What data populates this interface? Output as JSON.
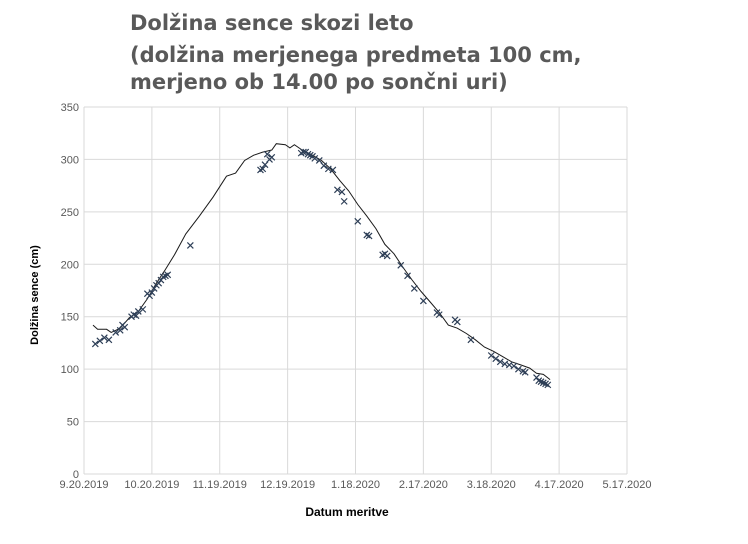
{
  "chart_data": {
    "type": "scatter",
    "title_lines": [
      "Dolžina sence skozi leto",
      "(dolžina merjenega predmeta 100 cm,",
      "merjeno ob 14.00 po sončni uri)"
    ],
    "xlabel": "Datum meritve",
    "ylabel": "Dolžina sence (cm)",
    "x_ticks": [
      "9.20.2019",
      "10.20.2019",
      "11.19.2019",
      "12.19.2019",
      "1.18.2020",
      "2.17.2020",
      "3.18.2020",
      "4.17.2020",
      "5.17.2020"
    ],
    "y_ticks": [
      0,
      50,
      100,
      150,
      200,
      250,
      300,
      350
    ],
    "xlim": [
      "2019-09-20",
      "2020-05-17"
    ],
    "ylim": [
      0,
      350
    ],
    "grid": true,
    "marker": "x",
    "colors": {
      "points": "#2e3f57",
      "line": "#1a1a1a",
      "grid": "#d9d9d9",
      "axis_text": "#595959",
      "title": "#595959"
    },
    "series": [
      {
        "kind": "measured-points",
        "points": [
          [
            "2019-09-25",
            124
          ],
          [
            "2019-09-27",
            127
          ],
          [
            "2019-09-29",
            130
          ],
          [
            "2019-10-01",
            128
          ],
          [
            "2019-10-04",
            135
          ],
          [
            "2019-10-06",
            137
          ],
          [
            "2019-10-07",
            142
          ],
          [
            "2019-10-08",
            140
          ],
          [
            "2019-10-11",
            150
          ],
          [
            "2019-10-12",
            152
          ],
          [
            "2019-10-13",
            151
          ],
          [
            "2019-10-14",
            155
          ],
          [
            "2019-10-16",
            157
          ],
          [
            "2019-10-18",
            172
          ],
          [
            "2019-10-19",
            170
          ],
          [
            "2019-10-20",
            173
          ],
          [
            "2019-10-21",
            177
          ],
          [
            "2019-10-22",
            180
          ],
          [
            "2019-10-23",
            182
          ],
          [
            "2019-10-24",
            185
          ],
          [
            "2019-10-25",
            188
          ],
          [
            "2019-10-26",
            189
          ],
          [
            "2019-10-27",
            190
          ],
          [
            "2019-11-06",
            218
          ],
          [
            "2019-12-07",
            290
          ],
          [
            "2019-12-08",
            291
          ],
          [
            "2019-12-09",
            295
          ],
          [
            "2019-12-10",
            305
          ],
          [
            "2019-12-11",
            300
          ],
          [
            "2019-12-12",
            302
          ],
          [
            "2019-12-25",
            306
          ],
          [
            "2019-12-26",
            307
          ],
          [
            "2019-12-27",
            307
          ],
          [
            "2019-12-28",
            305
          ],
          [
            "2019-12-29",
            304
          ],
          [
            "2019-12-30",
            303
          ],
          [
            "2019-12-31",
            301
          ],
          [
            "2020-01-02",
            299
          ],
          [
            "2020-01-04",
            294
          ],
          [
            "2020-01-06",
            291
          ],
          [
            "2020-01-08",
            290
          ],
          [
            "2020-01-10",
            271
          ],
          [
            "2020-01-12",
            269
          ],
          [
            "2020-01-13",
            260
          ],
          [
            "2020-01-19",
            241
          ],
          [
            "2020-01-23",
            228
          ],
          [
            "2020-01-24",
            227
          ],
          [
            "2020-01-30",
            209
          ],
          [
            "2020-01-31",
            210
          ],
          [
            "2020-02-01",
            208
          ],
          [
            "2020-02-07",
            199
          ],
          [
            "2020-02-10",
            189
          ],
          [
            "2020-02-13",
            177
          ],
          [
            "2020-02-17",
            165
          ],
          [
            "2020-02-23",
            154
          ],
          [
            "2020-02-24",
            152
          ],
          [
            "2020-03-02",
            147
          ],
          [
            "2020-03-03",
            145
          ],
          [
            "2020-03-09",
            128
          ],
          [
            "2020-03-18",
            113
          ],
          [
            "2020-03-20",
            110
          ],
          [
            "2020-03-22",
            107
          ],
          [
            "2020-03-24",
            105
          ],
          [
            "2020-03-26",
            104
          ],
          [
            "2020-03-28",
            103
          ],
          [
            "2020-03-30",
            100
          ],
          [
            "2020-04-01",
            98
          ],
          [
            "2020-04-02",
            97
          ],
          [
            "2020-04-07",
            92
          ],
          [
            "2020-04-08",
            89
          ],
          [
            "2020-04-09",
            88
          ],
          [
            "2020-04-10",
            87
          ],
          [
            "2020-04-11",
            86
          ],
          [
            "2020-04-12",
            85
          ]
        ]
      },
      {
        "kind": "reference-line",
        "points": [
          [
            "2019-09-24",
            142
          ],
          [
            "2019-09-26",
            138
          ],
          [
            "2019-09-30",
            138
          ],
          [
            "2019-10-02",
            135
          ],
          [
            "2019-10-06",
            139
          ],
          [
            "2019-10-10",
            149
          ],
          [
            "2019-10-14",
            155
          ],
          [
            "2019-10-18",
            167
          ],
          [
            "2019-10-22",
            182
          ],
          [
            "2019-10-26",
            195
          ],
          [
            "2019-10-30",
            209
          ],
          [
            "2019-11-04",
            229
          ],
          [
            "2019-11-10",
            246
          ],
          [
            "2019-11-16",
            264
          ],
          [
            "2019-11-22",
            284
          ],
          [
            "2019-11-26",
            287
          ],
          [
            "2019-11-30",
            299
          ],
          [
            "2019-12-04",
            304
          ],
          [
            "2019-12-08",
            307
          ],
          [
            "2019-12-12",
            309
          ],
          [
            "2019-12-14",
            315
          ],
          [
            "2019-12-18",
            314
          ],
          [
            "2019-12-20",
            311
          ],
          [
            "2019-12-22",
            314
          ],
          [
            "2019-12-26",
            308
          ],
          [
            "2019-12-30",
            304
          ],
          [
            "2020-01-03",
            299
          ],
          [
            "2020-01-07",
            291
          ],
          [
            "2020-01-11",
            280
          ],
          [
            "2020-01-15",
            270
          ],
          [
            "2020-01-19",
            257
          ],
          [
            "2020-01-23",
            246
          ],
          [
            "2020-01-27",
            234
          ],
          [
            "2020-01-31",
            219
          ],
          [
            "2020-02-04",
            210
          ],
          [
            "2020-02-08",
            197
          ],
          [
            "2020-02-12",
            185
          ],
          [
            "2020-02-16",
            174
          ],
          [
            "2020-02-20",
            164
          ],
          [
            "2020-02-24",
            154
          ],
          [
            "2020-02-28",
            142
          ],
          [
            "2020-03-03",
            139
          ],
          [
            "2020-03-07",
            134
          ],
          [
            "2020-03-11",
            128
          ],
          [
            "2020-03-15",
            121
          ],
          [
            "2020-03-19",
            117
          ],
          [
            "2020-03-23",
            112
          ],
          [
            "2020-03-27",
            107
          ],
          [
            "2020-03-31",
            104
          ],
          [
            "2020-04-04",
            101
          ],
          [
            "2020-04-07",
            96
          ],
          [
            "2020-04-10",
            95
          ],
          [
            "2020-04-13",
            90
          ]
        ]
      }
    ]
  }
}
